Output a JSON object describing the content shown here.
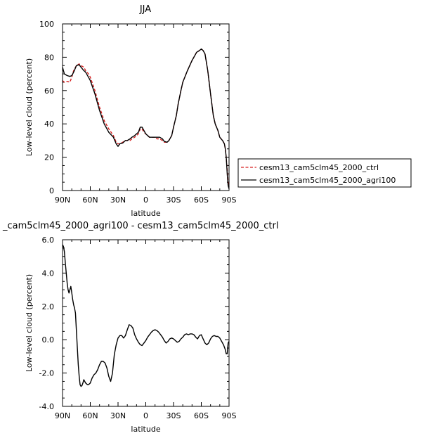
{
  "chart_data": [
    {
      "type": "line",
      "title": "JJA",
      "xlabel": "latitude",
      "ylabel": "Low-level cloud (percent)",
      "xlim": [
        90,
        -90
      ],
      "ylim": [
        0,
        100
      ],
      "x_ticks": [
        90,
        60,
        30,
        0,
        -30,
        -60,
        -90
      ],
      "x_tick_labels": [
        "90N",
        "60N",
        "30N",
        "0",
        "30S",
        "60S",
        "90S"
      ],
      "y_ticks": [
        0,
        20,
        40,
        60,
        80,
        100
      ],
      "y_tick_labels": [
        "0",
        "20",
        "40",
        "60",
        "80",
        "100"
      ],
      "legend_placement": "outside-right",
      "series": [
        {
          "name": "cesm13_cam5clm45_2000_ctrl",
          "color": "#d62020",
          "dash": "dashed",
          "x": [
            90,
            88,
            85,
            82,
            80,
            78,
            75,
            72,
            70,
            67,
            65,
            62,
            60,
            55,
            50,
            45,
            40,
            35,
            32,
            30,
            28,
            25,
            22,
            20,
            17,
            15,
            12,
            10,
            8,
            6,
            4,
            2,
            0,
            -2,
            -4,
            -6,
            -8,
            -10,
            -12,
            -15,
            -18,
            -20,
            -23,
            -25,
            -28,
            -30,
            -33,
            -35,
            -38,
            -40,
            -45,
            -50,
            -55,
            -58,
            -60,
            -62,
            -64,
            -67,
            -70,
            -73,
            -75,
            -78,
            -80,
            -83,
            -85,
            -86,
            -87,
            -88,
            -89,
            -90
          ],
          "y": [
            66,
            65,
            65.5,
            65,
            68,
            72,
            75,
            76,
            75,
            74,
            72,
            70,
            68,
            60,
            50,
            42,
            37,
            33,
            29,
            28,
            28,
            29,
            30,
            30,
            30,
            31,
            32,
            33,
            34,
            37,
            37,
            35,
            34,
            33,
            32,
            32,
            32,
            32,
            31,
            31,
            30,
            29,
            29,
            30,
            33,
            38,
            45,
            52,
            60,
            65,
            72,
            78,
            83,
            84,
            85,
            84,
            82,
            72,
            58,
            45,
            40,
            36,
            32,
            30,
            28,
            25,
            20,
            12,
            5,
            2
          ]
        },
        {
          "name": "cesm13_cam5clm45_2000_agri100",
          "color": "#000000",
          "dash": "solid",
          "x": [
            90,
            88,
            85,
            82,
            80,
            78,
            75,
            72,
            70,
            67,
            65,
            62,
            60,
            55,
            50,
            45,
            40,
            35,
            32,
            30,
            28,
            25,
            22,
            20,
            17,
            15,
            12,
            10,
            8,
            6,
            4,
            2,
            0,
            -2,
            -4,
            -6,
            -8,
            -10,
            -12,
            -15,
            -18,
            -20,
            -23,
            -25,
            -28,
            -30,
            -33,
            -35,
            -38,
            -40,
            -45,
            -50,
            -55,
            -58,
            -60,
            -62,
            -64,
            -67,
            -70,
            -73,
            -75,
            -78,
            -80,
            -83,
            -85,
            -86,
            -87,
            -88,
            -89,
            -90
          ],
          "y": [
            74,
            70,
            69,
            68.5,
            69,
            71,
            75,
            75.5,
            74,
            72,
            71,
            68,
            66,
            58,
            48,
            40,
            35,
            32,
            28,
            26.5,
            28,
            28.5,
            30,
            30,
            31,
            32,
            33,
            34,
            35,
            38,
            38,
            36,
            34,
            33,
            32,
            32,
            32,
            32,
            32,
            32,
            31,
            29.5,
            29,
            30,
            33,
            38,
            45,
            52,
            60,
            65,
            72,
            78,
            83,
            84,
            85,
            84,
            82,
            72,
            58,
            45,
            40,
            36,
            32,
            30,
            28,
            25,
            20,
            10,
            3,
            1
          ]
        }
      ]
    },
    {
      "type": "line",
      "title": "_cam5clm45_2000_agri100 - cesm13_cam5clm45_2000_ctrl",
      "xlabel": "latitude",
      "ylabel": "Low-level cloud (percent)",
      "xlim": [
        90,
        -90
      ],
      "ylim": [
        -4,
        6
      ],
      "x_ticks": [
        90,
        60,
        30,
        0,
        -30,
        -60,
        -90
      ],
      "x_tick_labels": [
        "90N",
        "60N",
        "30N",
        "0",
        "30S",
        "60S",
        "90S"
      ],
      "y_ticks": [
        -4,
        -2,
        0,
        2,
        4,
        6
      ],
      "y_tick_labels": [
        "-4.0",
        "-2.0",
        "0.0",
        "2.0",
        "4.0",
        "6.0"
      ],
      "series": [
        {
          "color": "#000000",
          "dash": "solid",
          "x": [
            90,
            89,
            88,
            87,
            86,
            85,
            84,
            83,
            82,
            81,
            80,
            79,
            78,
            77,
            76,
            75,
            74,
            73,
            72,
            71,
            70,
            69,
            68,
            67,
            66,
            65,
            64,
            63,
            62,
            61,
            60,
            58,
            56,
            54,
            52,
            50,
            48,
            46,
            44,
            42,
            40,
            38,
            36,
            34,
            32,
            30,
            28,
            26,
            24,
            22,
            20,
            18,
            16,
            14,
            12,
            10,
            8,
            6,
            4,
            2,
            0,
            -2,
            -4,
            -6,
            -8,
            -10,
            -12,
            -14,
            -16,
            -18,
            -20,
            -22,
            -24,
            -26,
            -28,
            -30,
            -32,
            -34,
            -36,
            -38,
            -40,
            -42,
            -44,
            -46,
            -48,
            -50,
            -52,
            -54,
            -56,
            -58,
            -60,
            -62,
            -64,
            -66,
            -68,
            -70,
            -72,
            -74,
            -76,
            -78,
            -80,
            -82,
            -84,
            -86,
            -87,
            -88,
            -89,
            -90
          ],
          "y": [
            5.7,
            5.6,
            5.3,
            4.6,
            4.0,
            3.4,
            3.0,
            2.8,
            3.0,
            3.2,
            2.8,
            2.4,
            2.1,
            1.9,
            1.6,
            0.5,
            -0.5,
            -1.5,
            -2.2,
            -2.7,
            -2.8,
            -2.75,
            -2.6,
            -2.4,
            -2.5,
            -2.6,
            -2.65,
            -2.7,
            -2.7,
            -2.65,
            -2.6,
            -2.3,
            -2.1,
            -2.0,
            -1.8,
            -1.5,
            -1.3,
            -1.3,
            -1.4,
            -1.7,
            -2.2,
            -2.5,
            -2.0,
            -0.9,
            -0.3,
            0.1,
            0.25,
            0.25,
            0.1,
            0.25,
            0.6,
            0.9,
            0.85,
            0.7,
            0.3,
            0.05,
            -0.15,
            -0.3,
            -0.35,
            -0.2,
            -0.05,
            0.15,
            0.3,
            0.45,
            0.55,
            0.6,
            0.55,
            0.45,
            0.3,
            0.15,
            -0.05,
            -0.2,
            -0.1,
            0.05,
            0.1,
            0.05,
            -0.05,
            -0.15,
            -0.1,
            0.05,
            0.15,
            0.3,
            0.35,
            0.3,
            0.35,
            0.35,
            0.3,
            0.15,
            0.05,
            0.25,
            0.3,
            0.05,
            -0.2,
            -0.3,
            -0.2,
            0.05,
            0.2,
            0.25,
            0.2,
            0.2,
            0.1,
            -0.1,
            -0.3,
            -0.6,
            -0.85,
            -0.85,
            -0.2,
            -0.1
          ]
        }
      ]
    }
  ]
}
